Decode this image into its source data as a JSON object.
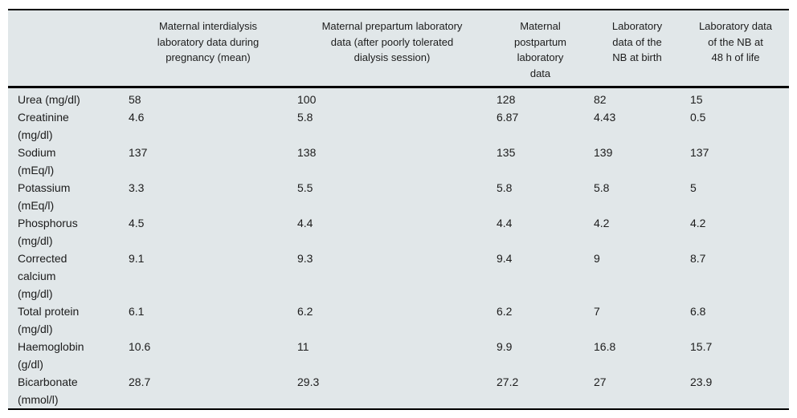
{
  "colors": {
    "table_background": "#e1e7e9",
    "rule_color": "#000000",
    "text_color": "#1c1c1c",
    "page_background": "#ffffff"
  },
  "table": {
    "header": {
      "col0": "",
      "col1": "Maternal interdialysis\nlaboratory data during\npregnancy (mean)",
      "col2": "Maternal prepartum laboratory\ndata (after poorly tolerated\ndialysis session)",
      "col3": "Maternal\npostpartum\nlaboratory\ndata",
      "col4": "Laboratory\ndata of the\nNB at birth",
      "col5": "Laboratory data\nof the NB at\n48 h of life"
    },
    "rows": [
      {
        "label": "Urea (mg/dl)",
        "values": [
          "58",
          "100",
          "128",
          "82",
          "15"
        ]
      },
      {
        "label": "Creatinine\n(mg/dl)",
        "values": [
          "4.6",
          "5.8",
          "6.87",
          "4.43",
          "0.5"
        ]
      },
      {
        "label": "Sodium\n(mEq/l)",
        "values": [
          "137",
          "138",
          "135",
          "139",
          "137"
        ]
      },
      {
        "label": "Potassium\n(mEq/l)",
        "values": [
          "3.3",
          "5.5",
          "5.8",
          "5.8",
          "5"
        ]
      },
      {
        "label": "Phosphorus\n(mg/dl)",
        "values": [
          "4.5",
          "4.4",
          "4.4",
          "4.2",
          "4.2"
        ]
      },
      {
        "label": "Corrected\ncalcium\n(mg/dl)",
        "values": [
          "9.1",
          "9.3",
          "9.4",
          "9",
          "8.7"
        ]
      },
      {
        "label": "Total protein\n(mg/dl)",
        "values": [
          "6.1",
          "6.2",
          "6.2",
          "7",
          "6.8"
        ]
      },
      {
        "label": "Haemoglobin\n(g/dl)",
        "values": [
          "10.6",
          "11",
          "9.9",
          "16.8",
          "15.7"
        ]
      },
      {
        "label": "Bicarbonate\n(mmol/l)",
        "values": [
          "28.7",
          "29.3",
          "27.2",
          "27",
          "23.9"
        ]
      }
    ]
  }
}
